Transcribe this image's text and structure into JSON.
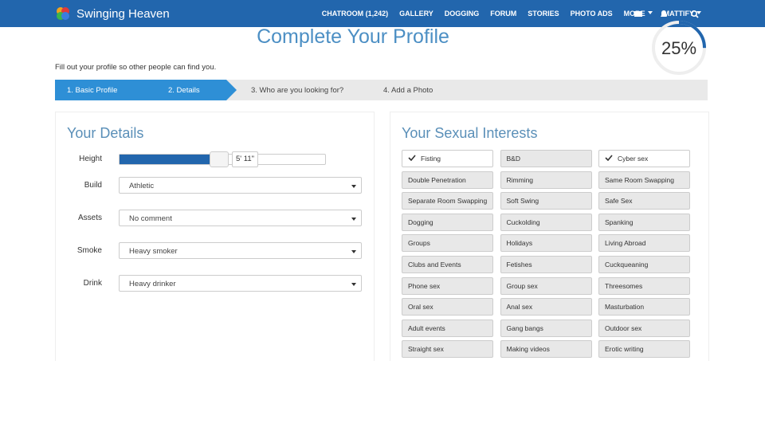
{
  "header": {
    "logo": "Swinging Heaven",
    "nav": [
      "CHATROOM (1,242)",
      "GALLERY",
      "DOGGING",
      "FORUM",
      "STORIES",
      "PHOTO ADS",
      "MORE",
      "MATTIFY"
    ]
  },
  "title": "Complete Your Profile",
  "progress": {
    "value": 25,
    "label": "25%"
  },
  "intro": "Fill out your profile so other people can find you.",
  "steps": [
    "1. Basic Profile",
    "2. Details",
    "3. Who are you looking for?",
    "4. Add a Photo"
  ],
  "details": {
    "title": "Your Details",
    "height": {
      "label": "Height",
      "value": "5' 11\""
    },
    "fields": [
      {
        "label": "Build",
        "value": "Athletic"
      },
      {
        "label": "Assets",
        "value": "No comment"
      },
      {
        "label": "Smoke",
        "value": "Heavy smoker"
      },
      {
        "label": "Drink",
        "value": "Heavy drinker"
      }
    ]
  },
  "interests": {
    "title": "Your Sexual Interests",
    "items": [
      {
        "label": "Fisting",
        "checked": true
      },
      {
        "label": "B&D",
        "checked": false
      },
      {
        "label": "Cyber sex",
        "checked": true
      },
      {
        "label": "Double Penetration",
        "checked": false
      },
      {
        "label": "Rimming",
        "checked": false
      },
      {
        "label": "Same Room Swapping",
        "checked": false
      },
      {
        "label": "Separate Room Swapping",
        "checked": false
      },
      {
        "label": "Soft Swing",
        "checked": false
      },
      {
        "label": "Safe Sex",
        "checked": false
      },
      {
        "label": "Dogging",
        "checked": false
      },
      {
        "label": "Cuckolding",
        "checked": false
      },
      {
        "label": "Spanking",
        "checked": false
      },
      {
        "label": "Groups",
        "checked": false
      },
      {
        "label": "Holidays",
        "checked": false
      },
      {
        "label": "Living Abroad",
        "checked": false
      },
      {
        "label": "Clubs and Events",
        "checked": false
      },
      {
        "label": "Fetishes",
        "checked": false
      },
      {
        "label": "Cuckqueaning",
        "checked": false
      },
      {
        "label": "Phone sex",
        "checked": false
      },
      {
        "label": "Group sex",
        "checked": false
      },
      {
        "label": "Threesomes",
        "checked": false
      },
      {
        "label": "Oral sex",
        "checked": false
      },
      {
        "label": "Anal sex",
        "checked": false
      },
      {
        "label": "Masturbation",
        "checked": false
      },
      {
        "label": "Adult events",
        "checked": false
      },
      {
        "label": "Gang bangs",
        "checked": false
      },
      {
        "label": "Outdoor sex",
        "checked": false
      },
      {
        "label": "Straight sex",
        "checked": false
      },
      {
        "label": "Making videos",
        "checked": false
      },
      {
        "label": "Erotic writing",
        "checked": false
      }
    ]
  }
}
